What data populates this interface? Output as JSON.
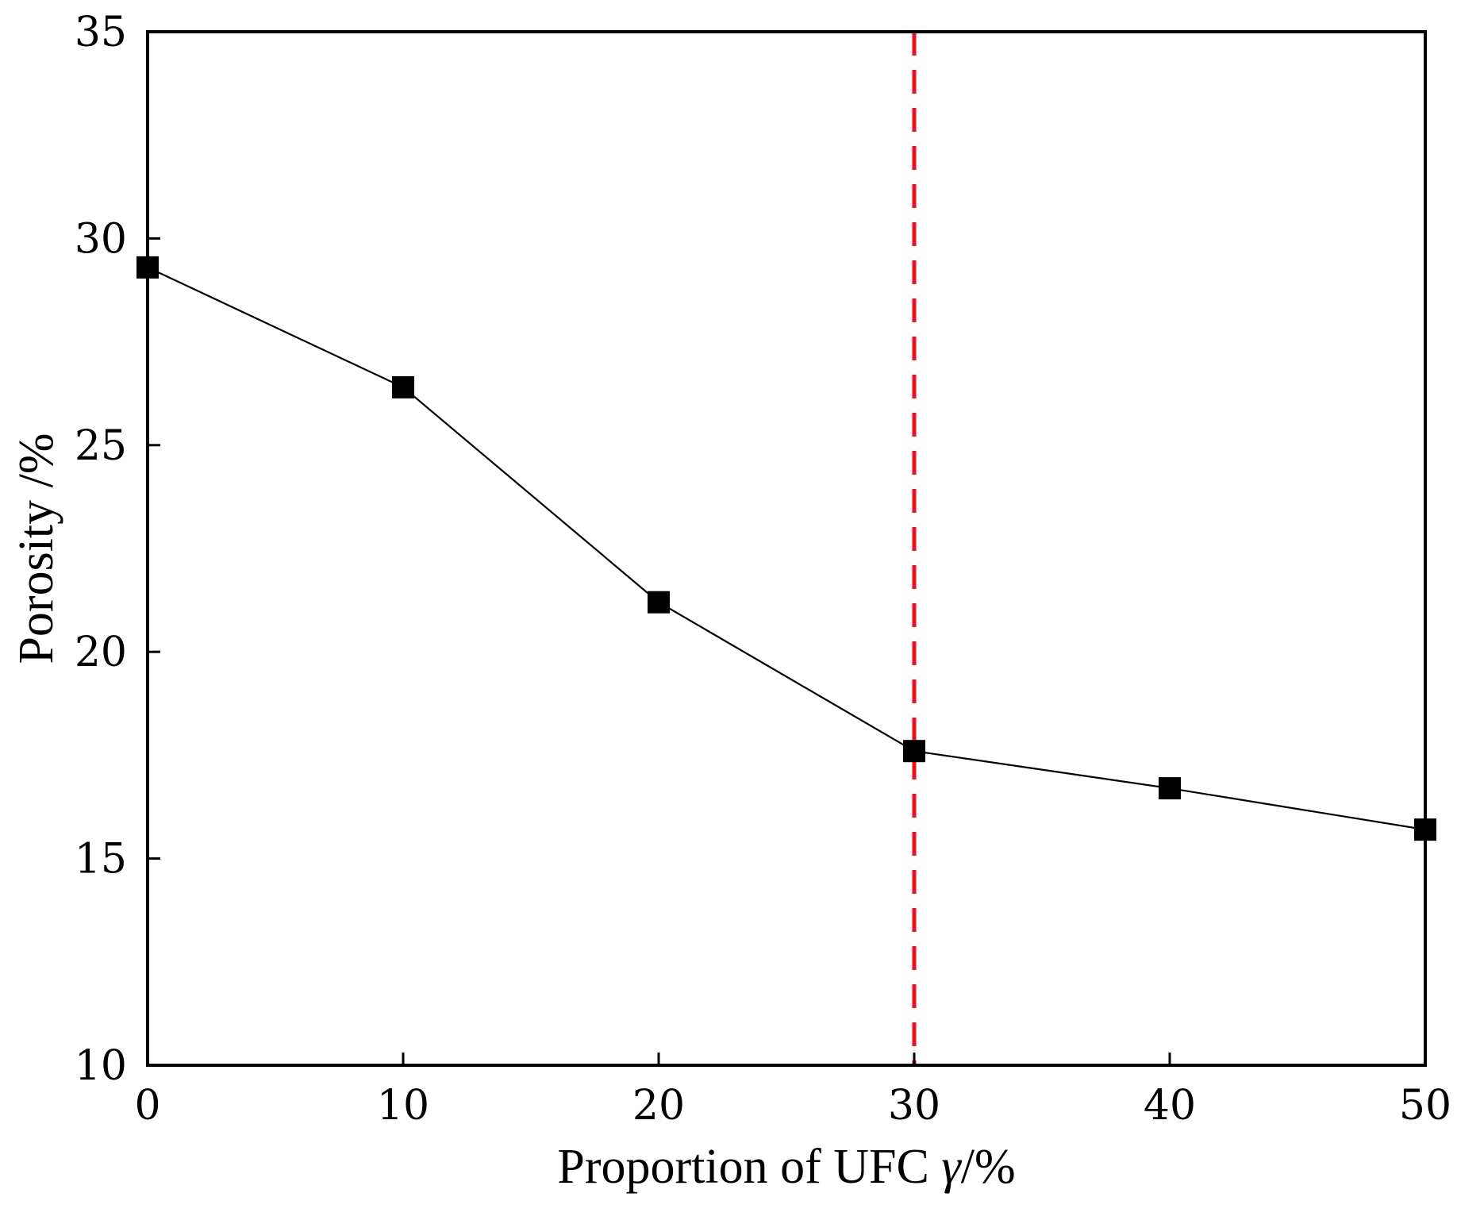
{
  "chart_data": {
    "type": "line",
    "title": "",
    "xlabel": "Proportion of UFC γ/%",
    "xlabel_parts": {
      "main": "Proportion of UFC ",
      "italic": "γ",
      "unit": "/%"
    },
    "ylabel": "Porosity /%",
    "xlim": [
      0,
      50
    ],
    "ylim": [
      10,
      35
    ],
    "xticks": [
      0,
      10,
      20,
      30,
      40,
      50
    ],
    "yticks": [
      10,
      15,
      20,
      25,
      30,
      35
    ],
    "grid": false,
    "legend": "none",
    "series": [
      {
        "x": [
          0,
          10,
          20,
          30,
          40,
          50
        ],
        "y": [
          29.3,
          26.4,
          21.2,
          17.6,
          16.7,
          15.7
        ],
        "color": "#000000",
        "marker": "square"
      }
    ],
    "reference_lines": [
      {
        "orientation": "vertical",
        "x": 30,
        "style": "dashed",
        "color": "#e8121b"
      }
    ]
  }
}
